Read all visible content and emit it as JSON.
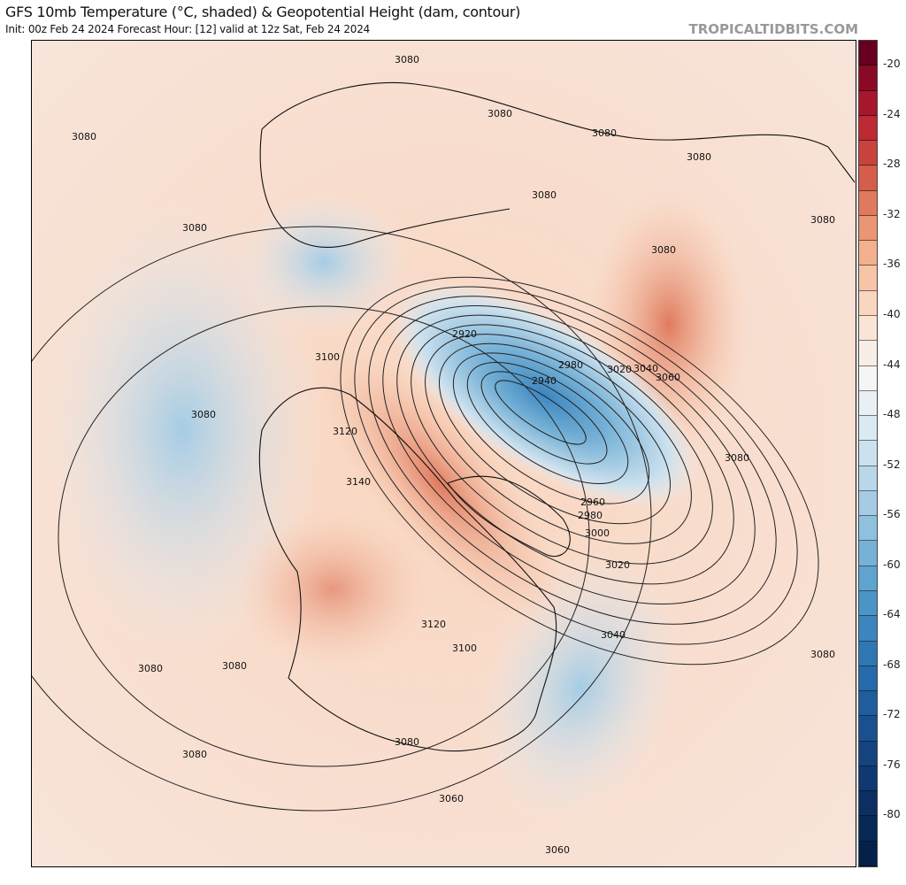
{
  "header": {
    "title": "GFS 10mb Temperature (°C, shaded) & Geopotential Height (dam, contour)",
    "subtitle": "Init: 00z Feb 24 2024   Forecast Hour: [12]   valid at 12z Sat, Feb 24 2024",
    "brand": "TROPICALTIDBITS.COM"
  },
  "colorbar": {
    "labels": [
      "-20",
      "-24",
      "-28",
      "-32",
      "-36",
      "-40",
      "-44",
      "-48",
      "-52",
      "-56",
      "-60",
      "-64",
      "-68",
      "-72",
      "-76",
      "-80"
    ],
    "range": [
      -84,
      -18
    ],
    "step": 2,
    "colors": [
      "#67001f",
      "#8a0a26",
      "#a8162d",
      "#bd2a33",
      "#c9433e",
      "#d45d4b",
      "#e07a5e",
      "#ea9573",
      "#f2b08d",
      "#f6c4a6",
      "#f9d6c0",
      "#fae4d6",
      "#f8eee8",
      "#f5f5f5",
      "#e8eff5",
      "#dbe9f2",
      "#cce1ee",
      "#b9d7e9",
      "#a5cce4",
      "#8fc0de",
      "#76b1d6",
      "#5fa3cf",
      "#4b94c6",
      "#3c86bf",
      "#2f77b4",
      "#256aaa",
      "#1f5d9e",
      "#1a508f",
      "#154380",
      "#103872",
      "#0b2f63",
      "#082856",
      "#05214a"
    ]
  },
  "map": {
    "contour_labels": [
      "3080",
      "3080",
      "3080",
      "3080",
      "3080",
      "3080",
      "3080",
      "3080",
      "3080",
      "3080",
      "3080",
      "3080",
      "3080",
      "3080",
      "3080",
      "3080",
      "3100",
      "3120",
      "3140",
      "3120",
      "3100",
      "2920",
      "2940",
      "2980",
      "3020",
      "3040",
      "3060",
      "2960",
      "2980",
      "3000",
      "3020",
      "3040",
      "3060",
      "3060"
    ]
  }
}
